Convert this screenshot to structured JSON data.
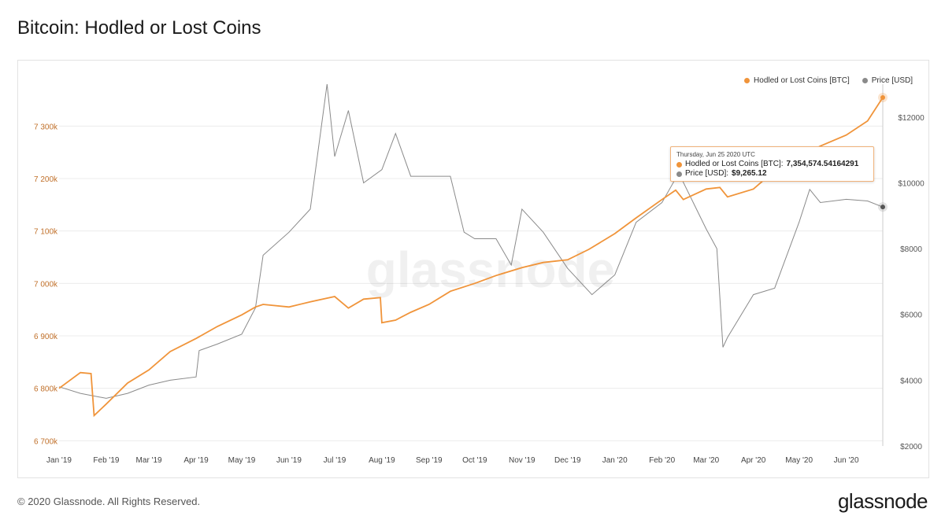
{
  "title": "Bitcoin: Hodled or Lost Coins",
  "footer": "© 2020 Glassnode. All Rights Reserved.",
  "logo": "glassnode",
  "watermark": "glassnode",
  "colors": {
    "btc": "#f0943a",
    "price": "#8a8a8a",
    "left_axis_text": "#c0702a",
    "grid": "#ececec"
  },
  "tooltip": {
    "date": "Thursday, Jun 25 2020 UTC",
    "series1_label": "Hodled or Lost Coins [BTC]:",
    "series1_value": "7,354,574.54164291",
    "series2_label": "Price [USD]:",
    "series2_value": "$9,265.12"
  },
  "chart_data": {
    "type": "line",
    "title": "Bitcoin: Hodled or Lost Coins",
    "legend_position": "top-right",
    "grid": true,
    "x_ticks": [
      "Jan '19",
      "Feb '19",
      "Mar '19",
      "Apr '19",
      "May '19",
      "Jun '19",
      "Jul '19",
      "Aug '19",
      "Sep '19",
      "Oct '19",
      "Nov '19",
      "Dec '19",
      "Jan '20",
      "Feb '20",
      "Mar '20",
      "Apr '20",
      "May '20",
      "Jun '20"
    ],
    "x_range": [
      "2019-01-01",
      "2020-06-25"
    ],
    "y_left": {
      "ticks": [
        "6 700k",
        "6 800k",
        "6 900k",
        "7 000k",
        "7 100k",
        "7 200k",
        "7 300k"
      ],
      "tick_values": [
        6700000,
        6800000,
        6900000,
        7000000,
        7100000,
        7200000,
        7300000
      ],
      "range": [
        6690000,
        7380000
      ]
    },
    "y_right": {
      "ticks": [
        "$2000",
        "$4000",
        "$6000",
        "$8000",
        "$10000",
        "$12000"
      ],
      "tick_values": [
        2000,
        4000,
        6000,
        8000,
        10000,
        12000
      ],
      "range": [
        2000,
        13000
      ]
    },
    "series": [
      {
        "name": "Hodled or Lost Coins [BTC]",
        "axis": "left",
        "x": [
          "2019-01-01",
          "2019-01-15",
          "2019-01-22",
          "2019-01-24",
          "2019-02-01",
          "2019-02-15",
          "2019-03-01",
          "2019-03-15",
          "2019-04-01",
          "2019-04-15",
          "2019-05-01",
          "2019-05-10",
          "2019-05-15",
          "2019-06-01",
          "2019-06-15",
          "2019-07-01",
          "2019-07-10",
          "2019-07-20",
          "2019-07-31",
          "2019-08-01",
          "2019-08-10",
          "2019-08-20",
          "2019-09-01",
          "2019-09-15",
          "2019-10-01",
          "2019-10-15",
          "2019-11-01",
          "2019-11-15",
          "2019-12-01",
          "2019-12-15",
          "2020-01-01",
          "2020-01-15",
          "2020-02-01",
          "2020-02-10",
          "2020-02-15",
          "2020-03-01",
          "2020-03-10",
          "2020-03-15",
          "2020-04-01",
          "2020-04-15",
          "2020-05-01",
          "2020-05-15",
          "2020-06-01",
          "2020-06-15",
          "2020-06-25"
        ],
        "values": [
          6800000,
          6830000,
          6828000,
          6748000,
          6770000,
          6810000,
          6835000,
          6870000,
          6895000,
          6918000,
          6940000,
          6955000,
          6960000,
          6955000,
          6965000,
          6975000,
          6953000,
          6970000,
          6973000,
          6925000,
          6930000,
          6945000,
          6960000,
          6985000,
          7000000,
          7015000,
          7030000,
          7040000,
          7045000,
          7065000,
          7095000,
          7125000,
          7160000,
          7178000,
          7160000,
          7180000,
          7183000,
          7165000,
          7180000,
          7215000,
          7240000,
          7262000,
          7283000,
          7310000,
          7354574.54
        ]
      },
      {
        "name": "Price [USD]",
        "axis": "right",
        "x": [
          "2019-01-01",
          "2019-01-15",
          "2019-02-01",
          "2019-02-15",
          "2019-03-01",
          "2019-03-15",
          "2019-04-01",
          "2019-04-03",
          "2019-04-15",
          "2019-05-01",
          "2019-05-10",
          "2019-05-15",
          "2019-06-01",
          "2019-06-15",
          "2019-06-26",
          "2019-07-01",
          "2019-07-10",
          "2019-07-20",
          "2019-08-01",
          "2019-08-10",
          "2019-08-20",
          "2019-09-01",
          "2019-09-15",
          "2019-09-24",
          "2019-10-01",
          "2019-10-15",
          "2019-10-25",
          "2019-11-01",
          "2019-11-15",
          "2019-12-01",
          "2019-12-17",
          "2020-01-01",
          "2020-01-15",
          "2020-02-01",
          "2020-02-12",
          "2020-03-01",
          "2020-03-08",
          "2020-03-12",
          "2020-03-15",
          "2020-04-01",
          "2020-04-15",
          "2020-05-01",
          "2020-05-08",
          "2020-05-15",
          "2020-06-01",
          "2020-06-15",
          "2020-06-25"
        ],
        "values": [
          3800,
          3600,
          3450,
          3600,
          3850,
          4000,
          4100,
          4900,
          5100,
          5400,
          6200,
          7800,
          8500,
          9200,
          13000,
          10800,
          12200,
          10000,
          10400,
          11500,
          10200,
          10200,
          10200,
          8500,
          8300,
          8300,
          7500,
          9200,
          8500,
          7400,
          6600,
          7200,
          8800,
          9400,
          10300,
          8600,
          8000,
          5000,
          5300,
          6600,
          6800,
          8800,
          9800,
          9400,
          9500,
          9450,
          9265.12
        ]
      }
    ]
  }
}
